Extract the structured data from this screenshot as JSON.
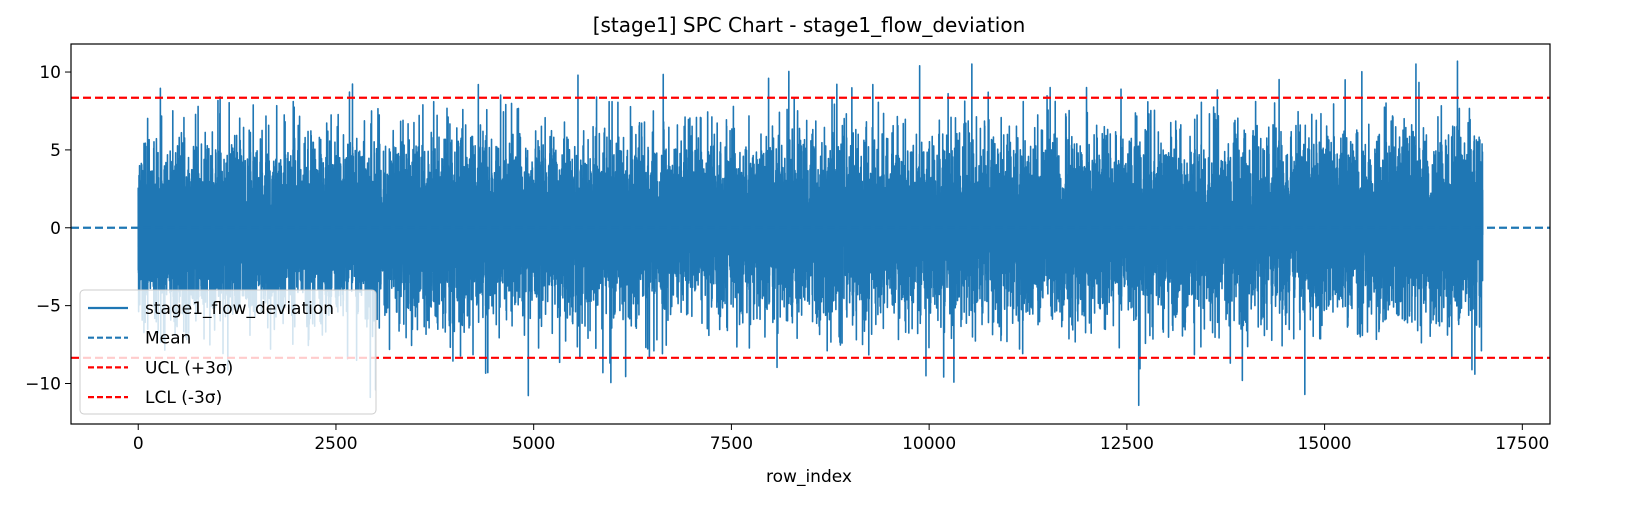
{
  "chart_data": {
    "type": "line",
    "title": "[stage1] SPC Chart - stage1_flow_deviation",
    "xlabel": "row_index",
    "ylabel": "",
    "xlim": [
      -850,
      17850
    ],
    "ylim": [
      -12.6,
      11.8
    ],
    "xticks": [
      0,
      2500,
      5000,
      7500,
      10000,
      12500,
      15000,
      17500
    ],
    "yticks": [
      -10,
      -5,
      0,
      5,
      10
    ],
    "grid": false,
    "legend_position": "lower-left",
    "n_points": 17000,
    "series": [
      {
        "name": "stage1_flow_deviation",
        "color": "#1f77b4",
        "style": "solid",
        "mean": 0.0,
        "sigma": 2.78,
        "max": 10.7,
        "min": -11.4
      }
    ],
    "reference_lines": [
      {
        "name": "Mean",
        "y": 0.0,
        "color": "#1f77b4",
        "style": "dashed"
      },
      {
        "name": "UCL (+3σ)",
        "y": 8.35,
        "color": "#ff0000",
        "style": "dashed"
      },
      {
        "name": "LCL (-3σ)",
        "y": -8.35,
        "color": "#ff0000",
        "style": "dashed"
      }
    ],
    "notable_points": [
      {
        "x": 4300,
        "y": 9.2
      },
      {
        "x": 4420,
        "y": -9.3
      },
      {
        "x": 5560,
        "y": 9.8
      },
      {
        "x": 7970,
        "y": 9.6
      },
      {
        "x": 9880,
        "y": 10.4
      },
      {
        "x": 9960,
        "y": -9.5
      },
      {
        "x": 11530,
        "y": 9.0
      },
      {
        "x": 11990,
        "y": 9.0
      },
      {
        "x": 12650,
        "y": -11.4
      },
      {
        "x": 13960,
        "y": -9.8
      },
      {
        "x": 14750,
        "y": -10.7
      },
      {
        "x": 15260,
        "y": 9.5
      },
      {
        "x": 16680,
        "y": 10.7
      },
      {
        "x": 16900,
        "y": -9.4
      }
    ]
  }
}
